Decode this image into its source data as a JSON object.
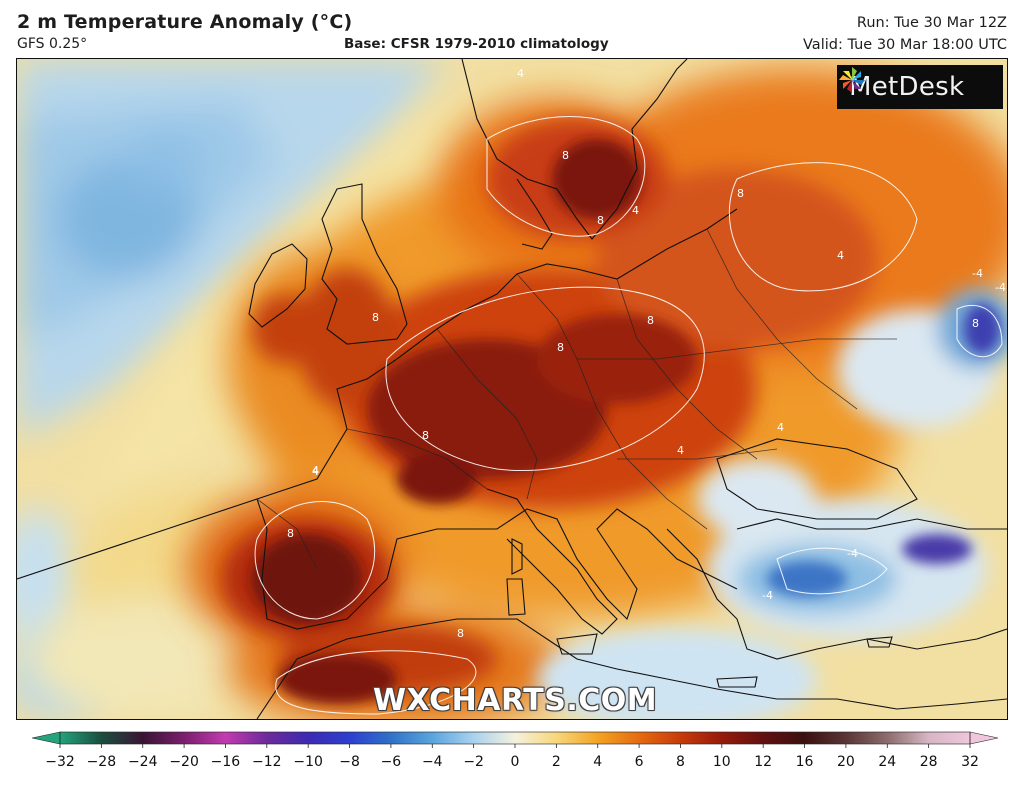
{
  "header": {
    "title": "2 m Temperature Anomaly (°C)",
    "model": "GFS 0.25°",
    "base": "Base: CFSR 1979-2010 climatology",
    "run": "Run: Tue 30 Mar 12Z",
    "valid": "Valid: Tue 30 Mar 18:00 UTC"
  },
  "branding": {
    "logo_text": "MetDesk",
    "watermark": "WXCHARTS.COM"
  },
  "map": {
    "region": "Europe",
    "contour_labels": [
      "4",
      "8",
      "-4",
      "4",
      "8",
      "8",
      "4",
      "8",
      "-4",
      "8",
      "4",
      "8",
      "-4",
      "8",
      "4",
      "8",
      "-4",
      "8",
      "4",
      "8",
      "4"
    ]
  },
  "colorbar": {
    "ticks": [
      "−32",
      "−28",
      "−24",
      "−20",
      "−16",
      "−12",
      "−10",
      "−8",
      "−6",
      "−4",
      "−2",
      "0",
      "2",
      "4",
      "6",
      "8",
      "10",
      "12",
      "16",
      "20",
      "24",
      "28",
      "32"
    ],
    "colors": {
      "c_m32": "#24a37c",
      "c_m28": "#1a4f3e",
      "c_m24": "#3a1434",
      "c_m20": "#7b1e6d",
      "c_m16": "#c23bb0",
      "c_m12": "#6d2a9a",
      "c_m10": "#3d2ab2",
      "c_m8": "#2d3fcf",
      "c_m6": "#2f72c8",
      "c_m4": "#5aa5dd",
      "c_m2": "#a9d2ee",
      "c_0": "#f4f1de",
      "c_2": "#f7d77a",
      "c_4": "#f3a324",
      "c_6": "#e56b10",
      "c_8": "#c73a0c",
      "c_10": "#961b0a",
      "c_12": "#621010",
      "c_16": "#3b1010",
      "c_20": "#5a3535",
      "c_24": "#8c6c6c",
      "c_28": "#d6b6c4",
      "c_32": "#f0c6dc"
    }
  }
}
